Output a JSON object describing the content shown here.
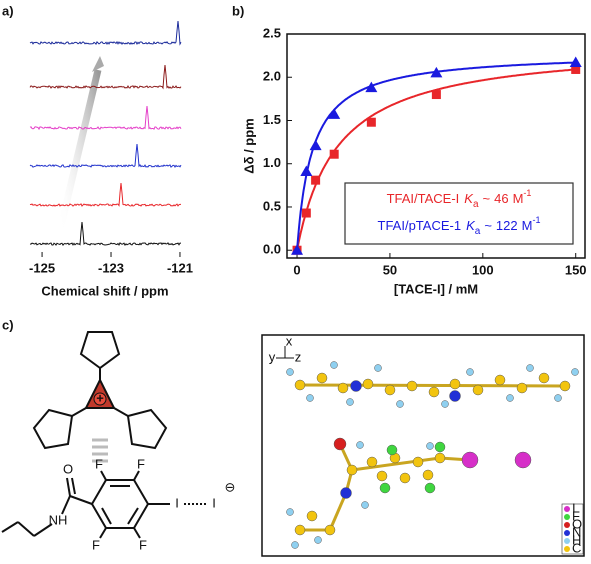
{
  "panel_labels": [
    "a)",
    "b)",
    "c)"
  ],
  "chart_data": [
    {
      "type": "spectra",
      "xlabel": "Chemical shift / ppm",
      "xlim": [
        -125.35,
        -120.97
      ],
      "xticks": [
        -125,
        -123,
        -121
      ],
      "series": [
        {
          "color": "#111111",
          "peak": -123.84
        },
        {
          "color": "#e8262a",
          "peak": -122.71
        },
        {
          "color": "#2233cc",
          "peak": -122.25
        },
        {
          "color": "#e43fc8",
          "peak": -121.96
        },
        {
          "color": "#8b1a1a",
          "peak": -121.43
        },
        {
          "color": "#1a2a9a",
          "peak": -121.06
        }
      ]
    },
    {
      "type": "scatter",
      "xlabel": "[TACE-I] / mM",
      "ylabel": "Δδ / ppm",
      "xlim": [
        -5.4,
        155
      ],
      "ylim": [
        -0.09,
        2.5
      ],
      "xticks": [
        0,
        50,
        100,
        150
      ],
      "yticks": [
        {
          "value": 0,
          "label": "0.0"
        },
        0.5,
        {
          "value": 1,
          "label": "1.0"
        },
        1.5,
        {
          "value": 2,
          "label": "2.0"
        },
        2.5
      ],
      "x": [
        0,
        5,
        10,
        20,
        40,
        75,
        150
      ],
      "series": [
        {
          "name": "TFAI/TACE-I",
          "color": "#e8262a",
          "marker": "square",
          "values": [
            0,
            0.43,
            0.81,
            1.11,
            1.48,
            1.8,
            2.09
          ],
          "fit": {
            "symbol": "K",
            "sub": "a",
            "approx": "~",
            "ka": 46,
            "unit": "M",
            "sup": "-1"
          }
        },
        {
          "name": "TFAI/pTACE-1",
          "color": "#1a1adf",
          "marker": "triangle",
          "values": [
            0,
            0.91,
            1.21,
            1.57,
            1.88,
            2.05,
            2.17
          ],
          "fit": {
            "symbol": "K",
            "sub": "a",
            "approx": "~",
            "ka": 122,
            "unit": "M",
            "sup": "-1"
          }
        }
      ]
    }
  ],
  "diagram": {
    "cation_charge": "+",
    "fluorines": [
      "F",
      "F",
      "F",
      "F"
    ],
    "oxygen": "O",
    "amine": "NH",
    "iodine": "I",
    "iodide": "I",
    "anion_charge": "⊖",
    "axes": [
      "x",
      "y",
      "z"
    ],
    "atom_legend": [
      {
        "label": "I",
        "color": "#d62fc8"
      },
      {
        "label": "F",
        "color": "#3fd63f"
      },
      {
        "label": "O",
        "color": "#d61f1f"
      },
      {
        "label": "N",
        "color": "#2230d6"
      },
      {
        "label": "H",
        "color": "#8fd0f0"
      },
      {
        "label": "C",
        "color": "#f2c40f"
      }
    ]
  }
}
